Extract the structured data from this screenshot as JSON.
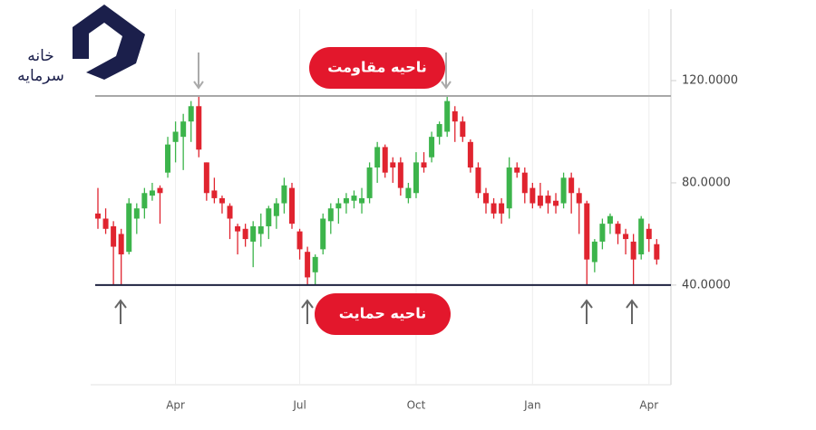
{
  "logo": {
    "line1": "خانه",
    "line2": "سرمایه"
  },
  "chart_data": {
    "type": "candlestick",
    "categories": [
      null,
      null,
      null,
      null,
      null,
      null,
      null,
      null,
      null,
      null,
      "Apr",
      null,
      null,
      null,
      null,
      null,
      null,
      null,
      null,
      null,
      null,
      null,
      null,
      null,
      null,
      null,
      "Jul",
      null,
      null,
      null,
      null,
      null,
      null,
      null,
      null,
      null,
      null,
      null,
      null,
      null,
      null,
      "Oct",
      null,
      null,
      null,
      null,
      null,
      null,
      null,
      null,
      null,
      null,
      null,
      null,
      null,
      null,
      "Jan",
      null,
      null,
      null,
      null,
      null,
      null,
      null,
      null,
      null,
      null,
      null,
      null,
      null,
      null,
      "Apr",
      null
    ],
    "open": [
      68,
      66,
      63,
      60,
      53,
      66,
      70,
      75,
      78,
      84,
      96,
      98,
      104,
      110,
      88,
      77,
      74,
      71,
      63,
      62,
      57,
      60,
      63,
      67,
      72,
      78,
      61,
      53,
      45,
      54,
      65,
      70,
      72,
      73,
      72,
      74,
      86,
      94,
      88,
      88,
      74,
      76,
      88,
      90,
      98,
      100,
      108,
      104,
      96,
      86,
      76,
      72,
      72,
      70,
      86,
      84,
      78,
      75,
      75,
      73,
      72,
      82,
      76,
      72,
      49,
      57,
      64,
      64,
      60,
      57,
      52,
      62,
      56
    ],
    "high": [
      78,
      70,
      65,
      62,
      74,
      72,
      78,
      80,
      79,
      98,
      104,
      107,
      112,
      114,
      88,
      82,
      75,
      72,
      64,
      64,
      65,
      68,
      71,
      74,
      82,
      80,
      62,
      55,
      52,
      68,
      72,
      74,
      76,
      77,
      78,
      88,
      96,
      95,
      90,
      90,
      80,
      92,
      92,
      100,
      104,
      114,
      110,
      106,
      97,
      88,
      78,
      74,
      74,
      90,
      88,
      86,
      80,
      80,
      77,
      76,
      84,
      84,
      78,
      73,
      58,
      66,
      68,
      65,
      62,
      60,
      67,
      64,
      58
    ],
    "low": [
      62,
      60,
      40,
      40,
      52,
      60,
      66,
      73,
      64,
      82,
      88,
      85,
      96,
      90,
      73,
      72,
      68,
      58,
      52,
      55,
      47,
      55,
      58,
      62,
      68,
      62,
      50,
      40,
      40,
      52,
      60,
      64,
      68,
      70,
      68,
      72,
      80,
      82,
      80,
      75,
      72,
      74,
      84,
      88,
      95,
      98,
      96,
      96,
      84,
      74,
      68,
      66,
      64,
      66,
      82,
      72,
      70,
      70,
      68,
      68,
      70,
      68,
      60,
      40,
      45,
      54,
      60,
      56,
      52,
      40,
      50,
      53,
      48
    ],
    "close": [
      66,
      62,
      55,
      52,
      72,
      70,
      76,
      77,
      76,
      95,
      100,
      104,
      110,
      93,
      76,
      74,
      72,
      66,
      61,
      58,
      63,
      63,
      70,
      72,
      79,
      64,
      54,
      43,
      51,
      66,
      70,
      72,
      74,
      75,
      74,
      86,
      94,
      84,
      86,
      78,
      78,
      88,
      86,
      98,
      103,
      112,
      104,
      98,
      86,
      76,
      72,
      68,
      68,
      86,
      84,
      76,
      72,
      71,
      72,
      71,
      82,
      76,
      72,
      50,
      57,
      64,
      67,
      60,
      58,
      50,
      66,
      58,
      50
    ],
    "up_color": "#3cb44b",
    "down_color": "#e0242f",
    "ylim": [
      1,
      148
    ],
    "yticks": [
      {
        "value": 40,
        "label": "40.0000"
      },
      {
        "value": 80,
        "label": "80.0000"
      },
      {
        "value": 120,
        "label": "120.0000"
      }
    ],
    "hlines": [
      {
        "value": 114,
        "color": "#a8a8a8",
        "label": "ناحیه مقاومت"
      },
      {
        "value": 40,
        "color": "#1f2340",
        "label": "ناحیه حمایت"
      }
    ]
  }
}
